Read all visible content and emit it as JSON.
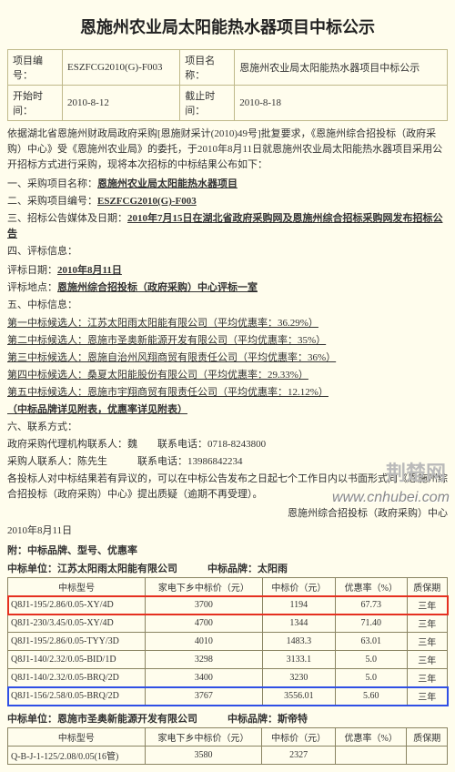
{
  "doc": {
    "title": "恩施州农业局太阳能热水器项目中标公示",
    "meta": {
      "proj_no_lbl": "项目编号：",
      "proj_no": "ESZFCG2010(G)-F003",
      "proj_name_lbl": "项目名称：",
      "proj_name": "恩施州农业局太阳能热水器项目中标公示",
      "start_lbl": "开始时间：",
      "start": "2010-8-12",
      "end_lbl": "截止时间：",
      "end": "2010-8-18"
    },
    "intro": "依据湖北省恩施州财政局政府采购[恩施财采计(2010)49号]批复要求，《恩施州综合招投标（政府采购）中心》受《恩施州农业局》的委托，于2010年8月11日就恩施州农业局太阳能热水器项目采用公开招标方式进行采购，现将本次招标的中标结果公布如下：",
    "items": {
      "i1_lbl": "一、采购项目名称：",
      "i1_val": "恩施州农业局太阳能热水器项目",
      "i2_lbl": "二、采购项目编号：",
      "i2_val": "ESZFCG2010(G)-F003",
      "i3_lbl": "三、招标公告媒体及日期：",
      "i3_val": "2010年7月15日在湖北省政府采购网及恩施州综合招标采购网发布招标公告",
      "i4_lbl": "四、评标信息："
    },
    "eval": {
      "date_lbl": "评标日期：",
      "date_val": "2010年8月11日",
      "loc_lbl": "评标地点：",
      "loc_val": "恩施州综合招投标（政府采购）中心评标一室",
      "sec5": "五、中标信息：",
      "c1": "第一中标候选人：江苏太阳雨太阳能有限公司（平均优惠率：36.29%）",
      "c2": "第二中标候选人：恩施市圣奥新能源开发有限公司（平均优惠率：35%）",
      "c3": "第三中标候选人：恩施自治州风翔商贸有限责任公司（平均优惠率：36%）",
      "c4": "第四中标候选人：桑夏太阳能股份有限公司（平均优惠率：29.33%）",
      "c5": "第五中标候选人：恩施市宇翔商贸有限责任公司（平均优惠率：12.12%）",
      "brand_note": "（中标品牌详见附表，优惠率详见附表）",
      "sec6": "六、联系方式：",
      "agent": "政府采购代理机构联系人：魏　　联系电话：0718-8243800",
      "buyer": "采购人联系人：陈先生　　　联系电话：13986842234",
      "objection": "各投标人对中标结果若有异议的，可以在中标公告发布之日起七个工作日内以书面形式向《恩施州综合招投标（政府采购）中心》提出质疑（逾期不再受理）。",
      "footer_org": "恩施州综合招投标（政府采购）中心",
      "footer_date": "2010年8月11日"
    },
    "attach_label": "附：中标品牌、型号、优惠率",
    "tbl1": {
      "unit": "中标单位：江苏太阳雨太阳能有限公司　　　中标品牌：太阳雨",
      "headers": [
        "中标型号",
        "家电下乡中标价（元）",
        "中标价（元）",
        "优惠率（%）",
        "质保期"
      ],
      "rows": [
        {
          "m": "Q8J1-195/2.86/0.05-XY/4D",
          "p1": "3700",
          "p2": "1194",
          "r": "67.73",
          "w": "三年",
          "hl": "red"
        },
        {
          "m": "Q8J1-230/3.45/0.05-XY/4D",
          "p1": "4700",
          "p2": "1344",
          "r": "71.40",
          "w": "三年"
        },
        {
          "m": "Q8J1-195/2.86/0.05-TYY/3D",
          "p1": "4010",
          "p2": "1483.3",
          "r": "63.01",
          "w": "三年"
        },
        {
          "m": "Q8J1-140/2.32/0.05-BID/1D",
          "p1": "3298",
          "p2": "3133.1",
          "r": "5.0",
          "w": "三年"
        },
        {
          "m": "Q8J1-140/2.32/0.05-BRQ/2D",
          "p1": "3400",
          "p2": "3230",
          "r": "5.0",
          "w": "三年"
        },
        {
          "m": "Q8J1-156/2.58/0.05-BRQ/2D",
          "p1": "3767",
          "p2": "3556.01",
          "r": "5.60",
          "w": "三年",
          "hl": "blue"
        }
      ]
    },
    "tbl2": {
      "unit": "中标单位：恩施市圣奥新能源开发有限公司　　　中标品牌：斯帝特",
      "headers": [
        "中标型号",
        "家电下乡中标价（元）",
        "中标价（元）",
        "优惠率（%）",
        "质保期"
      ],
      "rows": [
        {
          "m": "Q-B-J-1-125/2.08/0.05(16管)",
          "p1": "3580",
          "p2": "2327",
          "r": "",
          "w": ""
        }
      ]
    },
    "watermark_cn": "荆楚网",
    "watermark_url": "www.cnhubei.com"
  }
}
